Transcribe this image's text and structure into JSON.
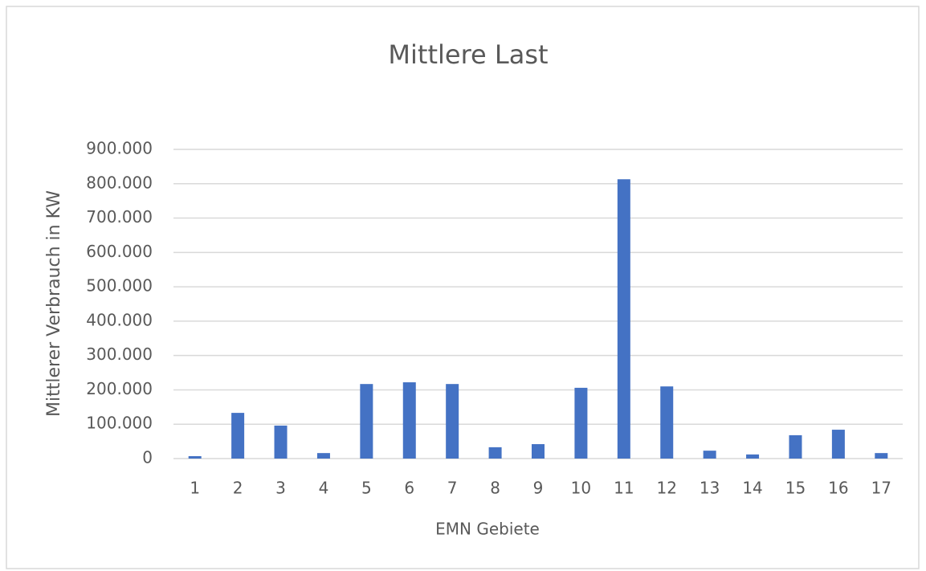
{
  "chart_data": {
    "type": "bar",
    "title": "Mittlere Last",
    "xlabel": "EMN Gebiete",
    "ylabel": "Mittlerer Verbrauch in KW",
    "categories": [
      "1",
      "2",
      "3",
      "4",
      "5",
      "6",
      "7",
      "8",
      "9",
      "10",
      "11",
      "12",
      "13",
      "14",
      "15",
      "16",
      "17"
    ],
    "values": [
      7000,
      133000,
      96000,
      16000,
      217000,
      222000,
      217000,
      33000,
      42000,
      206000,
      813000,
      210000,
      23000,
      12000,
      68000,
      84000,
      16000
    ],
    "color": "#4472c4",
    "ylim": [
      0,
      900000
    ],
    "yticks": [
      0,
      {
        "value": 100000,
        "label": "100.000"
      },
      {
        "value": 200000,
        "label": "200.000"
      },
      {
        "value": 300000,
        "label": "300.000"
      },
      {
        "value": 400000,
        "label": "400.000"
      },
      {
        "value": 500000,
        "label": "500.000"
      },
      {
        "value": 600000,
        "label": "600.000"
      },
      {
        "value": 700000,
        "label": "700.000"
      },
      {
        "value": 800000,
        "label": "800.000"
      },
      {
        "value": 900000,
        "label": "900.000"
      }
    ],
    "grid": true
  }
}
